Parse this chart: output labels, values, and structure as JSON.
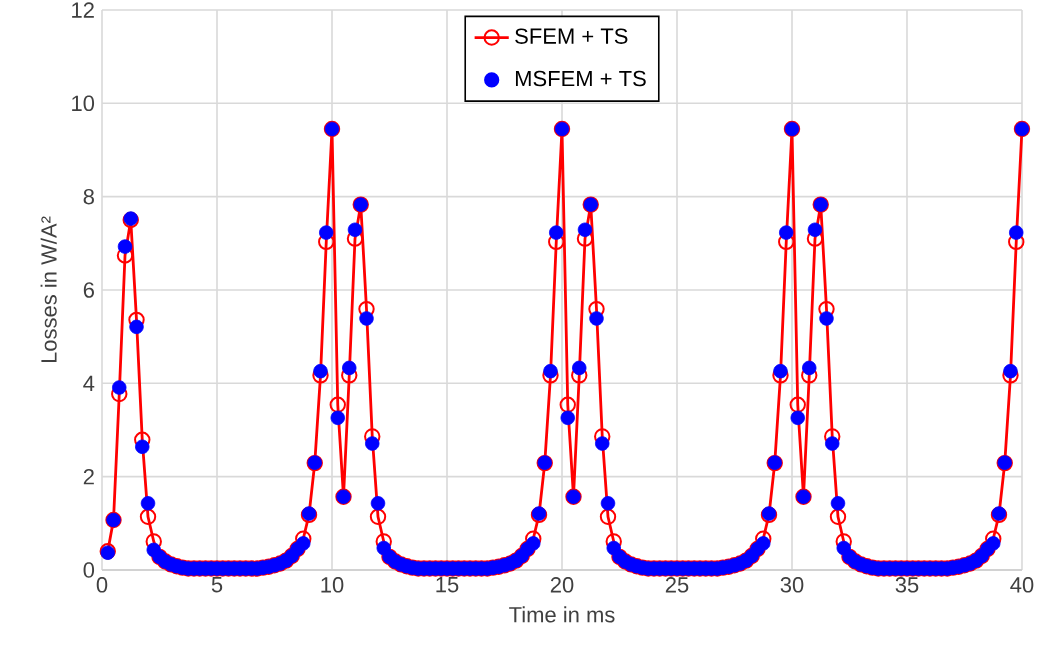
{
  "chart_data": {
    "type": "line",
    "xlabel": "Time in ms",
    "ylabel": "Losses in W/A²",
    "xlim": [
      0,
      40
    ],
    "xticks": [
      0,
      5,
      10,
      15,
      20,
      25,
      30,
      35,
      40
    ],
    "ylim": [
      0,
      12
    ],
    "yticks": [
      0,
      2,
      4,
      6,
      8,
      10,
      12
    ],
    "grid": true,
    "legend": "top",
    "x": [
      0.25,
      0.5,
      0.75,
      1,
      1.25,
      1.5,
      1.75,
      2,
      2.25,
      2.5,
      2.75,
      3,
      3.25,
      3.5,
      3.75,
      4,
      4.25,
      4.5,
      4.75,
      5,
      5.25,
      5.5,
      5.75,
      6,
      6.25,
      6.5,
      6.75,
      7,
      7.25,
      7.5,
      7.75,
      8,
      8.25,
      8.5,
      8.75,
      9,
      9.25,
      9.5,
      9.75,
      10,
      10.25,
      10.5,
      10.75,
      11,
      11.25,
      11.5,
      11.75,
      12,
      12.25,
      12.5,
      12.75,
      13,
      13.25,
      13.5,
      13.75,
      14,
      14.25,
      14.5,
      14.75,
      15,
      15.25,
      15.5,
      15.75,
      16,
      16.25,
      16.5,
      16.75,
      17,
      17.25,
      17.5,
      17.75,
      18,
      18.25,
      18.5,
      18.75,
      19,
      19.25,
      19.5,
      19.75,
      20,
      20.25,
      20.5,
      20.75,
      21,
      21.25,
      21.5,
      21.75,
      22,
      22.25,
      22.5,
      22.75,
      23,
      23.25,
      23.5,
      23.75,
      24,
      24.25,
      24.5,
      24.75,
      25,
      25.25,
      25.5,
      25.75,
      26,
      26.25,
      26.5,
      26.75,
      27,
      27.25,
      27.5,
      27.75,
      28,
      28.25,
      28.5,
      28.75,
      29,
      29.25,
      29.5,
      29.75,
      30,
      30.25,
      30.5,
      30.75,
      31,
      31.25,
      31.5,
      31.75,
      32,
      32.25,
      32.5,
      32.75,
      33,
      33.25,
      33.5,
      33.75,
      34,
      34.25,
      34.5,
      34.75,
      35,
      35.25,
      35.5,
      35.75,
      36,
      36.25,
      36.5,
      36.75,
      37,
      37.25,
      37.5,
      37.75,
      38,
      38.25,
      38.5,
      38.75,
      39,
      39.25,
      39.5,
      39.75,
      40
    ],
    "series": [
      {
        "name": "SFEM + TS",
        "marker": "circle",
        "line_style": "solid",
        "color": "#ff0000",
        "values": [
          0.4,
          1.07,
          3.77,
          6.74,
          7.5,
          5.36,
          2.79,
          1.14,
          0.61,
          0.28,
          0.18,
          0.12,
          0.08,
          0.05,
          0.03,
          0.03,
          0.03,
          0.03,
          0.03,
          0.03,
          0.03,
          0.03,
          0.03,
          0.03,
          0.03,
          0.03,
          0.03,
          0.05,
          0.07,
          0.1,
          0.14,
          0.2,
          0.3,
          0.45,
          0.67,
          1.18,
          2.29,
          4.17,
          7.03,
          9.45,
          3.54,
          1.57,
          4.17,
          7.1,
          7.83,
          5.59,
          2.86,
          1.14,
          0.61,
          0.28,
          0.18,
          0.12,
          0.08,
          0.05,
          0.03,
          0.03,
          0.03,
          0.03,
          0.03,
          0.03,
          0.03,
          0.03,
          0.03,
          0.03,
          0.03,
          0.03,
          0.03,
          0.05,
          0.07,
          0.1,
          0.14,
          0.2,
          0.3,
          0.45,
          0.67,
          1.18,
          2.29,
          4.17,
          7.03,
          9.45,
          3.54,
          1.57,
          4.17,
          7.1,
          7.83,
          5.59,
          2.86,
          1.14,
          0.61,
          0.28,
          0.18,
          0.12,
          0.08,
          0.05,
          0.03,
          0.03,
          0.03,
          0.03,
          0.03,
          0.03,
          0.03,
          0.03,
          0.03,
          0.03,
          0.03,
          0.03,
          0.03,
          0.05,
          0.07,
          0.1,
          0.14,
          0.2,
          0.3,
          0.45,
          0.67,
          1.18,
          2.29,
          4.17,
          7.03,
          9.45,
          3.54,
          1.57,
          4.17,
          7.1,
          7.83,
          5.59,
          2.86,
          1.14,
          0.61,
          0.28,
          0.18,
          0.12,
          0.08,
          0.05,
          0.03,
          0.03,
          0.03,
          0.03,
          0.03,
          0.03,
          0.03,
          0.03,
          0.03,
          0.03,
          0.03,
          0.03,
          0.03,
          0.05,
          0.07,
          0.1,
          0.14,
          0.2,
          0.3,
          0.45,
          0.67,
          1.18,
          2.29,
          4.17,
          7.03,
          9.45
        ]
      },
      {
        "name": "MSFEM + TS",
        "type": "scatter",
        "marker": "circle",
        "color": "#0000ff",
        "values": [
          0.37,
          1.07,
          3.91,
          6.93,
          7.53,
          5.21,
          2.64,
          1.43,
          0.43,
          0.28,
          0.18,
          0.12,
          0.08,
          0.05,
          0.03,
          0.03,
          0.03,
          0.03,
          0.03,
          0.03,
          0.03,
          0.03,
          0.03,
          0.03,
          0.03,
          0.03,
          0.03,
          0.05,
          0.07,
          0.1,
          0.14,
          0.2,
          0.3,
          0.45,
          0.57,
          1.21,
          2.3,
          4.26,
          7.23,
          9.45,
          3.26,
          1.57,
          4.33,
          7.29,
          7.83,
          5.39,
          2.71,
          1.43,
          0.47,
          0.28,
          0.18,
          0.12,
          0.08,
          0.05,
          0.03,
          0.03,
          0.03,
          0.03,
          0.03,
          0.03,
          0.03,
          0.03,
          0.03,
          0.03,
          0.03,
          0.03,
          0.03,
          0.05,
          0.07,
          0.1,
          0.14,
          0.2,
          0.3,
          0.45,
          0.57,
          1.21,
          2.3,
          4.26,
          7.23,
          9.45,
          3.26,
          1.57,
          4.33,
          7.29,
          7.83,
          5.39,
          2.71,
          1.43,
          0.47,
          0.28,
          0.18,
          0.12,
          0.08,
          0.05,
          0.03,
          0.03,
          0.03,
          0.03,
          0.03,
          0.03,
          0.03,
          0.03,
          0.03,
          0.03,
          0.03,
          0.03,
          0.03,
          0.05,
          0.07,
          0.1,
          0.14,
          0.2,
          0.3,
          0.45,
          0.57,
          1.21,
          2.3,
          4.26,
          7.23,
          9.45,
          3.26,
          1.57,
          4.33,
          7.29,
          7.83,
          5.39,
          2.71,
          1.43,
          0.47,
          0.28,
          0.18,
          0.12,
          0.08,
          0.05,
          0.03,
          0.03,
          0.03,
          0.03,
          0.03,
          0.03,
          0.03,
          0.03,
          0.03,
          0.03,
          0.03,
          0.03,
          0.03,
          0.05,
          0.07,
          0.1,
          0.14,
          0.2,
          0.3,
          0.45,
          0.57,
          1.21,
          2.3,
          4.26,
          7.23,
          9.45
        ]
      }
    ]
  }
}
